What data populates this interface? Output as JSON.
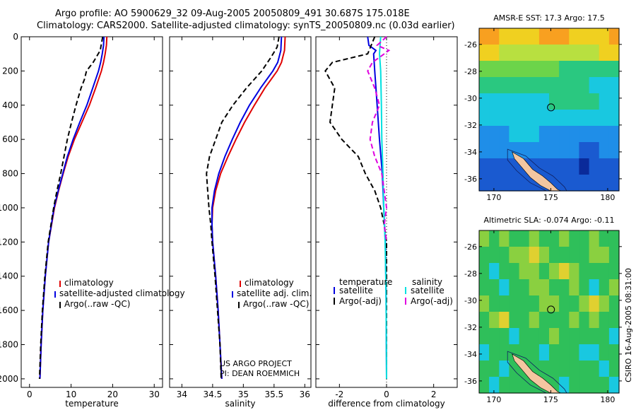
{
  "header": {
    "line1": "Argo profile: AO 5900629_32 09-Aug-2005 20050809_491 30.687S 175.018E",
    "line2": "Climatology: CARS2000. Satellite-adjusted climatology: synTS_20050809.nc (0.03d earlier)"
  },
  "colors": {
    "climatology": "#e00000",
    "satellite": "#0000e0",
    "argo": "#000000",
    "sal_satellite": "#00e0e0",
    "sal_argo": "#e000e0"
  },
  "chart_data": [
    {
      "type": "line",
      "xlabel": "temperature",
      "ylabel": "",
      "xlim": [
        -2,
        32
      ],
      "ylim": [
        2050,
        0
      ],
      "xticks": [
        0,
        10,
        20,
        30
      ],
      "yticks": [
        0,
        200,
        400,
        600,
        800,
        1000,
        1200,
        1400,
        1600,
        1800,
        2000
      ],
      "legend": [
        "climatology",
        "satellite-adjusted climatology",
        "Argo(..raw -QC)"
      ],
      "series": [
        {
          "name": "climatology",
          "color": "#e00000",
          "dash": "",
          "depth": [
            0,
            50,
            100,
            150,
            200,
            300,
            400,
            500,
            600,
            700,
            800,
            900,
            1000,
            1200,
            1400,
            1600,
            1800,
            2000
          ],
          "values": [
            18.6,
            18.5,
            18.2,
            17.8,
            17.3,
            15.9,
            14.4,
            12.6,
            10.8,
            9.3,
            8.1,
            7.0,
            6.0,
            4.6,
            3.8,
            3.2,
            2.8,
            2.5
          ]
        },
        {
          "name": "satellite-adjusted climatology",
          "color": "#0000e0",
          "dash": "",
          "depth": [
            0,
            50,
            100,
            150,
            200,
            300,
            400,
            500,
            600,
            700,
            800,
            900,
            1000,
            1200,
            1400,
            1600,
            1800,
            2000
          ],
          "values": [
            17.9,
            17.8,
            17.5,
            17.1,
            16.6,
            15.2,
            13.8,
            12.1,
            10.5,
            9.1,
            8.0,
            6.9,
            5.9,
            4.6,
            3.8,
            3.2,
            2.8,
            2.5
          ]
        },
        {
          "name": "Argo(..raw -QC)",
          "color": "#000000",
          "dash": "7,4",
          "depth": [
            0,
            80,
            150,
            200,
            250,
            300,
            400,
            500,
            600,
            700,
            800,
            900,
            1000,
            1200,
            1400,
            1600,
            1800,
            2000
          ],
          "values": [
            17.6,
            17.0,
            15.3,
            13.7,
            13.2,
            12.4,
            11.2,
            10.1,
            9.1,
            8.3,
            7.5,
            6.6,
            5.8,
            4.5,
            3.7,
            3.1,
            2.7,
            2.4
          ]
        }
      ]
    },
    {
      "type": "line",
      "xlabel": "salinity",
      "ylabel": "",
      "xlim": [
        33.8,
        36.1
      ],
      "ylim": [
        2050,
        0
      ],
      "xticks": [
        34,
        34.5,
        35,
        35.5,
        36
      ],
      "legend": [
        "climatology",
        "satellite adj. clim.",
        "Argo(..raw -QC)"
      ],
      "series": [
        {
          "name": "climatology",
          "color": "#e00000",
          "dash": "",
          "depth": [
            0,
            80,
            150,
            200,
            300,
            400,
            500,
            600,
            700,
            800,
            900,
            1000,
            1100,
            1200,
            1400,
            1600,
            1800,
            2000
          ],
          "values": [
            35.68,
            35.67,
            35.62,
            35.55,
            35.35,
            35.18,
            35.02,
            34.88,
            34.75,
            34.63,
            34.55,
            34.5,
            34.49,
            34.5,
            34.55,
            34.59,
            34.62,
            34.65
          ]
        },
        {
          "name": "satellite adj. clim.",
          "color": "#0000e0",
          "dash": "",
          "depth": [
            0,
            80,
            150,
            200,
            300,
            400,
            500,
            600,
            700,
            800,
            900,
            1000,
            1100,
            1200,
            1400,
            1600,
            1800,
            2000
          ],
          "values": [
            35.62,
            35.61,
            35.56,
            35.48,
            35.28,
            35.1,
            34.95,
            34.82,
            34.7,
            34.6,
            34.53,
            34.49,
            34.49,
            34.5,
            34.55,
            34.59,
            34.62,
            34.65
          ]
        },
        {
          "name": "Argo(..raw -QC)",
          "color": "#000000",
          "dash": "7,4",
          "depth": [
            0,
            60,
            120,
            200,
            300,
            400,
            500,
            600,
            700,
            800,
            900,
            1000,
            1100,
            1200,
            1400,
            1600,
            1800,
            2000
          ],
          "values": [
            35.58,
            35.55,
            35.45,
            35.3,
            35.05,
            34.83,
            34.65,
            34.55,
            34.45,
            34.4,
            34.42,
            34.44,
            34.47,
            34.49,
            34.54,
            34.58,
            34.62,
            34.64
          ]
        }
      ]
    },
    {
      "type": "line",
      "xlabel": "difference from climatology",
      "ylabel": "",
      "xlim": [
        -3,
        3
      ],
      "ylim": [
        2050,
        0
      ],
      "xticks": [
        -2,
        0,
        2
      ],
      "legend": [
        "temperature",
        "satellite",
        "Argo(-adj)",
        "salinity",
        "satellite",
        "Argo(-adj)"
      ],
      "series": [
        {
          "name": "satellite",
          "group": "temperature",
          "color": "#0000e0",
          "dash": "",
          "depth": [
            0,
            50,
            80,
            100,
            200,
            400,
            600,
            800,
            1000,
            1200,
            1500,
            2000
          ],
          "values": [
            -0.8,
            -0.75,
            -0.45,
            -0.55,
            -0.5,
            -0.4,
            -0.3,
            -0.18,
            -0.12,
            -0.05,
            -0.02,
            0.0
          ]
        },
        {
          "name": "Argo(-adj)",
          "group": "temperature",
          "color": "#000000",
          "dash": "7,4",
          "depth": [
            0,
            100,
            150,
            200,
            250,
            300,
            400,
            500,
            600,
            700,
            800,
            900,
            1000,
            1100,
            1200,
            1500,
            2000
          ],
          "values": [
            -0.5,
            -0.8,
            -2.3,
            -2.6,
            -2.4,
            -2.2,
            -2.3,
            -2.4,
            -1.9,
            -1.2,
            -0.9,
            -0.5,
            -0.25,
            -0.1,
            0.0,
            0.0,
            0.0
          ]
        },
        {
          "name": "satellite",
          "group": "salinity",
          "color": "#00e0e0",
          "dash": "",
          "depth": [
            0,
            100,
            200,
            400,
            600,
            800,
            1000,
            1200,
            1500,
            2000
          ],
          "values": [
            -0.25,
            -0.3,
            -0.25,
            -0.22,
            -0.2,
            -0.15,
            -0.12,
            -0.06,
            -0.02,
            0.0
          ]
        },
        {
          "name": "Argo(-adj)",
          "group": "salinity",
          "color": "#e000e0",
          "dash": "7,4",
          "depth": [
            0,
            50,
            80,
            150,
            200,
            300,
            400,
            500,
            600,
            700,
            800,
            900,
            1000,
            1100,
            1200
          ],
          "values": [
            0.0,
            -0.4,
            0.1,
            -0.6,
            -0.8,
            -0.5,
            -0.3,
            -0.6,
            -0.7,
            -0.5,
            -0.2,
            -0.1,
            0.0,
            -0.1,
            0.0
          ]
        }
      ]
    }
  ],
  "maps": [
    {
      "title": "AMSR-E SST: 17.3 Argo: 17.5",
      "xticks": [
        170,
        175,
        180
      ],
      "yticks": [
        -26,
        -28,
        -30,
        -32,
        -34,
        -36
      ],
      "xlim": [
        168.7,
        181
      ],
      "ylim": [
        -36.9,
        -24.8
      ],
      "marker": {
        "lon": 175.018,
        "lat": -30.687
      },
      "field": [
        [
          8,
          8,
          7,
          7,
          7,
          7,
          8,
          8,
          8,
          7,
          7,
          7,
          7,
          8
        ],
        [
          7,
          7,
          6,
          6,
          6,
          6,
          6,
          6,
          6,
          6,
          6,
          6,
          7,
          7
        ],
        [
          5,
          5,
          5,
          5,
          5,
          5,
          5,
          5,
          4,
          4,
          4,
          4,
          4,
          4
        ],
        [
          4,
          4,
          4,
          4,
          4,
          4,
          4,
          4,
          4,
          4,
          4,
          3,
          3,
          3
        ],
        [
          3,
          3,
          3,
          3,
          3,
          3,
          3,
          4,
          4,
          4,
          4,
          4,
          3,
          3
        ],
        [
          3,
          3,
          3,
          3,
          3,
          3,
          3,
          3,
          3,
          3,
          3,
          3,
          3,
          3
        ],
        [
          2,
          2,
          2,
          3,
          3,
          3,
          2,
          2,
          2,
          2,
          2,
          2,
          2,
          2
        ],
        [
          2,
          2,
          2,
          2,
          2,
          2,
          2,
          2,
          2,
          2,
          1,
          1,
          2,
          2
        ],
        [
          1,
          1,
          1,
          1,
          1,
          1,
          1,
          1,
          1,
          1,
          0,
          1,
          1,
          1
        ],
        [
          1,
          1,
          1,
          1,
          1,
          1,
          1,
          1,
          1,
          1,
          1,
          1,
          1,
          1
        ]
      ],
      "colormap": [
        "#0a2a9a",
        "#1a5ad0",
        "#1f8ee8",
        "#19c8e0",
        "#2ac880",
        "#6cd44a",
        "#b8e040",
        "#f0d020",
        "#f8a020"
      ]
    },
    {
      "title": "Altimetric SLA: -0.074 Argo: -0.11",
      "xticks": [
        170,
        175,
        180
      ],
      "yticks": [
        -26,
        -28,
        -30,
        -32,
        -34,
        -36
      ],
      "xlim": [
        168.7,
        181
      ],
      "ylim": [
        -36.9,
        -24.8
      ],
      "marker": {
        "lon": 175.018,
        "lat": -30.687
      },
      "side_label": "CSIRO 16-Aug-2005 08:31:00",
      "field": [
        [
          5,
          4,
          5,
          4,
          4,
          5,
          4,
          4,
          5,
          4,
          4,
          5,
          4,
          4
        ],
        [
          4,
          4,
          4,
          5,
          5,
          6,
          5,
          4,
          4,
          4,
          4,
          5,
          5,
          4
        ],
        [
          4,
          3,
          4,
          4,
          5,
          5,
          4,
          5,
          6,
          5,
          4,
          4,
          4,
          4
        ],
        [
          4,
          4,
          3,
          4,
          4,
          5,
          5,
          4,
          4,
          5,
          4,
          3,
          4,
          5
        ],
        [
          5,
          4,
          4,
          4,
          4,
          4,
          5,
          5,
          4,
          4,
          5,
          6,
          5,
          4
        ],
        [
          4,
          5,
          6,
          4,
          4,
          5,
          4,
          4,
          4,
          5,
          4,
          5,
          4,
          4
        ],
        [
          4,
          4,
          4,
          3,
          4,
          4,
          4,
          5,
          4,
          4,
          4,
          4,
          4,
          3
        ],
        [
          3,
          4,
          4,
          4,
          4,
          4,
          3,
          4,
          4,
          4,
          3,
          3,
          4,
          4
        ],
        [
          4,
          4,
          3,
          4,
          4,
          4,
          4,
          4,
          4,
          4,
          4,
          4,
          3,
          4
        ],
        [
          4,
          3,
          4,
          4,
          4,
          4,
          4,
          4,
          3,
          4,
          4,
          4,
          4,
          3
        ]
      ],
      "colormap": [
        "#0a2a9a",
        "#1a5ad0",
        "#1f8ee8",
        "#19c8e0",
        "#2fbf5a",
        "#8ad040",
        "#e0d030",
        "#f0a020",
        "#f87020"
      ]
    }
  ],
  "annotations": {
    "project_line1": "US ARGO PROJECT",
    "project_line2": "PI: DEAN ROEMMICH"
  }
}
